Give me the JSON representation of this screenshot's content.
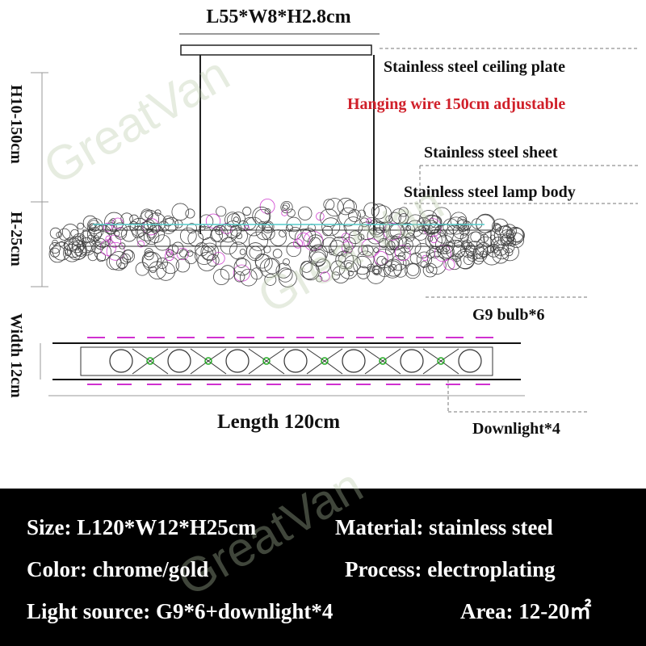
{
  "dimensions": {
    "plate": "L55*W8*H2.8cm",
    "height_total": "H10-150cm",
    "body_height": "H-25cm",
    "width": "Width 12cm",
    "length": "Length 120cm"
  },
  "callouts": [
    "Stainless steel ceiling plate",
    "Hanging wire 150cm adjustable",
    "Stainless steel sheet",
    "Stainless steel lamp body",
    "G9 bulb*6",
    "Downlight*4"
  ],
  "watermark": "GreatVan",
  "specs": [
    [
      "Size: L120*W12*H25cm",
      "Material: stainless steel"
    ],
    [
      "Color: chrome/gold",
      "Process: electroplating"
    ],
    [
      "Light source: G9*6+downlight*4",
      "Area: 12-20㎡"
    ]
  ]
}
